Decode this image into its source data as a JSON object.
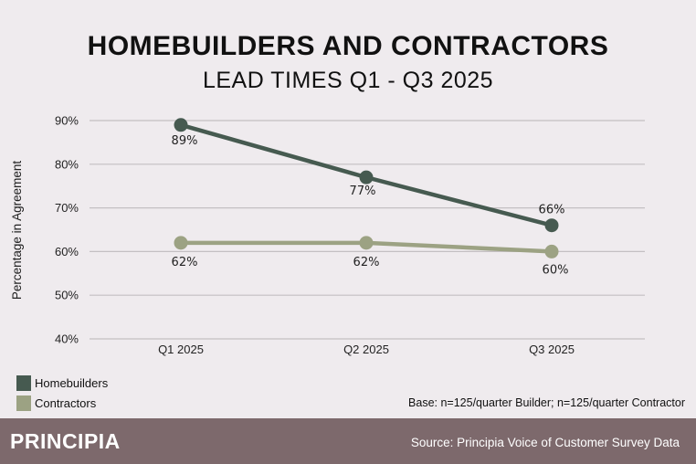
{
  "chart_data": {
    "type": "line",
    "title": "HOMEBUILDERS AND CONTRACTORS",
    "subtitle": "LEAD TIMES Q1 - Q3 2025",
    "ylabel": "Percentage in Agreement",
    "xlabel": "",
    "categories": [
      "Q1 2025",
      "Q2 2025",
      "Q3 2025"
    ],
    "ylim": [
      40,
      90
    ],
    "yticks": [
      "90%",
      "80%",
      "70%",
      "60%",
      "50%",
      "40%"
    ],
    "grid": true,
    "legend_placement": "bottom-left",
    "series": [
      {
        "name": "Homebuilders",
        "values": [
          89,
          77,
          66
        ],
        "labels": [
          "89%",
          "77%",
          "66%"
        ],
        "color": "#465a50"
      },
      {
        "name": "Contractors",
        "values": [
          62,
          62,
          60
        ],
        "labels": [
          "62%",
          "62%",
          "60%"
        ],
        "color": "#9ca283"
      }
    ]
  },
  "base_note": "Base: n=125/quarter Builder; n=125/quarter Contractor",
  "footer": {
    "logo": "PRINCIPIA",
    "source": "Source: Principia Voice of Customer Survey Data",
    "color": "#7d696c"
  }
}
